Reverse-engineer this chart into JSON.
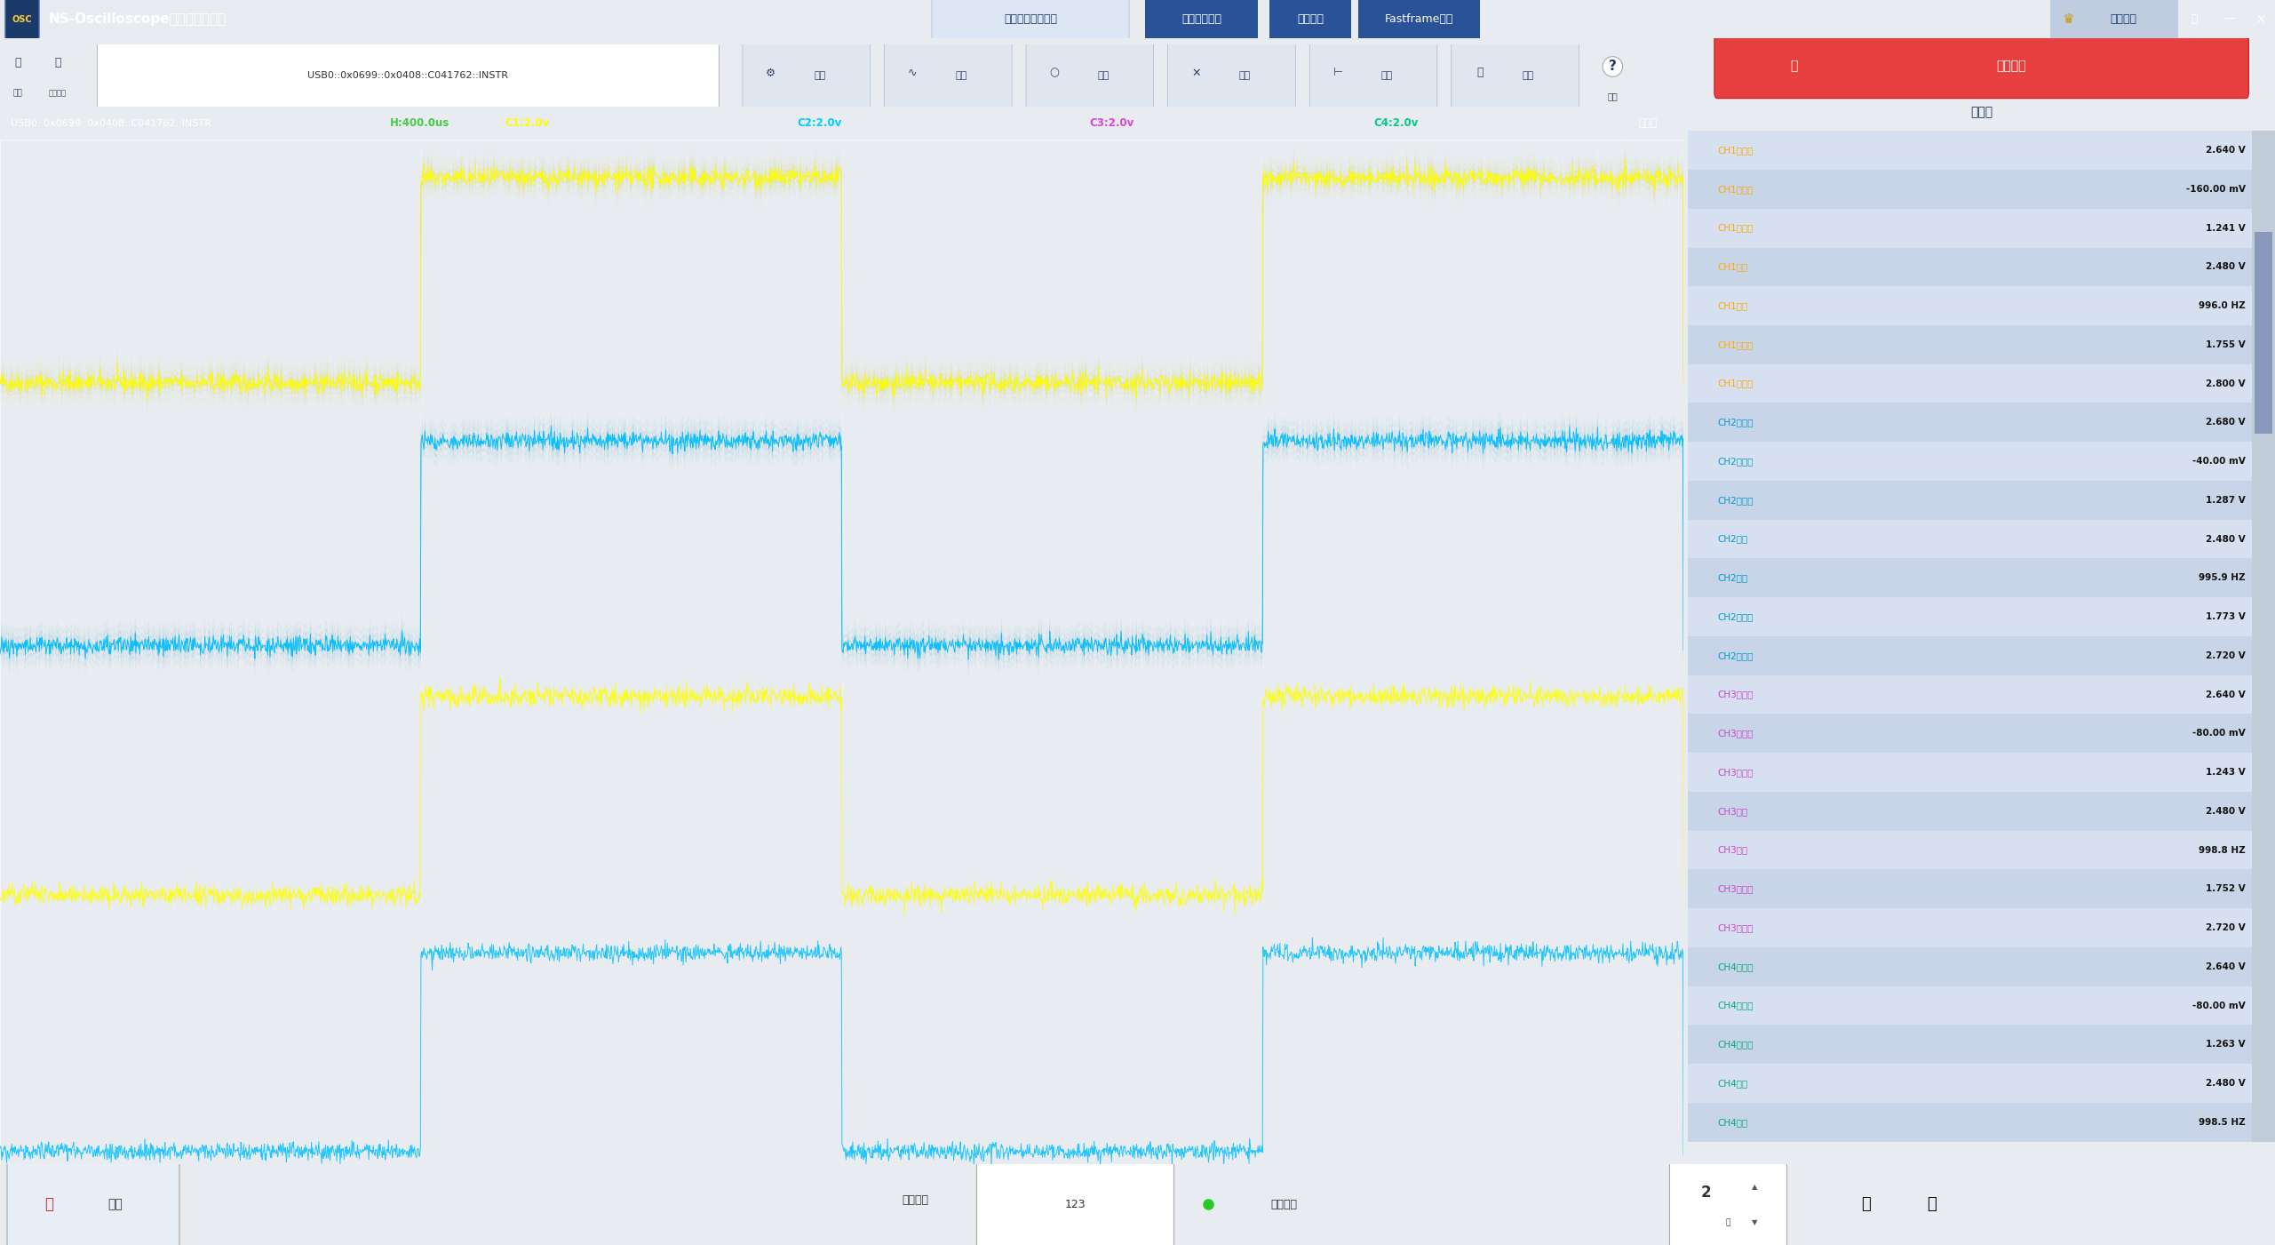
{
  "title": "NS-Oscilloscope示波器控制软件",
  "bg_title": "#2a5298",
  "bg_osc": "#000000",
  "bg_toolbar": "#f0f2f5",
  "bg_main": "#e8ecf0",
  "tab_labels": [
    "屏幕波形测量采集",
    "内存波形采集",
    "测量采集",
    "Fastframe辅助"
  ],
  "toolbar_btn_labels": [
    "设置",
    "时基",
    "通道",
    "触发",
    "光标",
    "测量"
  ],
  "channel_colors": [
    "#ffff00",
    "#00bfff",
    "#ffff00",
    "#00bfff"
  ],
  "ch_labels": [
    "C1:2.0v",
    "C2:2.0v",
    "C3:2.0v",
    "C4:2.0v"
  ],
  "ch_label_colors": [
    "#ffff00",
    "#00ccff",
    "#dd44dd",
    "#00cc88"
  ],
  "header_text": "H:400.0us",
  "triggered_text": "已触发",
  "device_text": "USB0::0x0699::0x0408::C041762::INSTR",
  "right_panel_rows": [
    [
      "CH1最大值",
      "2.640 V"
    ],
    [
      "CH1最小值",
      "-160.00 mV"
    ],
    [
      "CH1平均值",
      "1.241 V"
    ],
    [
      "CH1幅值",
      "2.480 V"
    ],
    [
      "CH1频率",
      "996.0 HZ"
    ],
    [
      "CH1有效值",
      "1.755 V"
    ],
    [
      "CH1最低值",
      "2.800 V"
    ],
    [
      "CH2最大值",
      "2.680 V"
    ],
    [
      "CH2最小值",
      "-40.00 mV"
    ],
    [
      "CH2平均值",
      "1.287 V"
    ],
    [
      "CH2幅值",
      "2.480 V"
    ],
    [
      "CH2频率",
      "995.9 HZ"
    ],
    [
      "CH2有效值",
      "1.773 V"
    ],
    [
      "CH2最低值",
      "2.720 V"
    ],
    [
      "CH3最大值",
      "2.640 V"
    ],
    [
      "CH3最小值",
      "-80.00 mV"
    ],
    [
      "CH3平均值",
      "1.243 V"
    ],
    [
      "CH3幅值",
      "2.480 V"
    ],
    [
      "CH3频率",
      "998.8 HZ"
    ],
    [
      "CH3有效值",
      "1.752 V"
    ],
    [
      "CH3最低值",
      "2.720 V"
    ],
    [
      "CH4最大值",
      "2.640 V"
    ],
    [
      "CH4最小值",
      "-80.00 mV"
    ],
    [
      "CH4平均值",
      "1.263 V"
    ],
    [
      "CH4幅值",
      "2.480 V"
    ],
    [
      "CH4频率",
      "998.5 HZ"
    ]
  ],
  "bottom_bar": {
    "stop_text": "停止",
    "waveform_name_label": "波形名称",
    "waveform_name_value": "123",
    "persistence_label": "打开余晖",
    "num_value": "2"
  },
  "right_bg_colors": [
    "#d6e0f0",
    "#c8d4e8"
  ],
  "right_val_colors": {
    "CH1": "#ffaa00",
    "CH2": "#0099cc",
    "CH3": "#cc44cc",
    "CH4": "#00aa77"
  }
}
